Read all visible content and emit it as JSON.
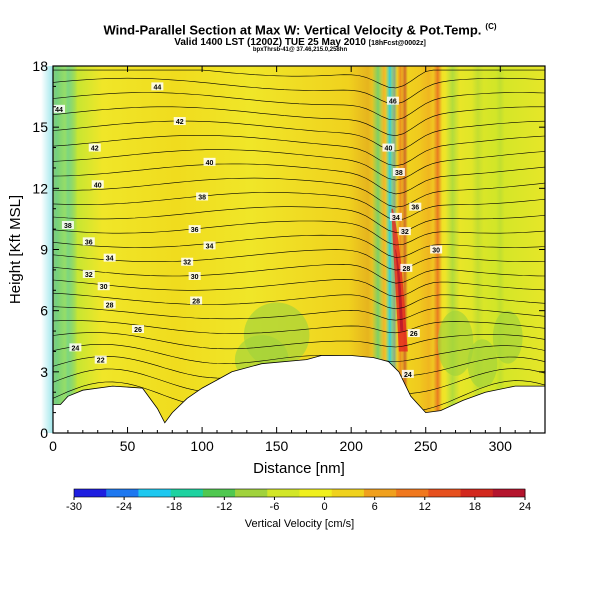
{
  "header": {
    "title": "Wind-Parallel Section at Max W: Vertical Velocity & Pot.Temp.",
    "title_mark": "(C)",
    "valid_line": "Valid 1400 LST",
    "valid_time": "(1200Z) TUE 25 May 2010",
    "run_tag": "[18hFcst@0002z]",
    "sub_line": "bpxThrsb-41@ 37.46,215.0,258hn"
  },
  "colorbar": {
    "label": "Vertical Velocity [cm/s]",
    "ticks": [
      "-30",
      "-24",
      "-18",
      "-12",
      "-6",
      "0",
      "6",
      "12",
      "18",
      "24"
    ],
    "colors": [
      "#1e1ee0",
      "#1e78f0",
      "#1ec8f0",
      "#1ed2a0",
      "#50c850",
      "#a0d23c",
      "#d2e628",
      "#f0f01e",
      "#f0d21e",
      "#f0a01e",
      "#f0781e",
      "#e6501e",
      "#d2281e",
      "#b4142d"
    ]
  },
  "chart_data": {
    "type": "heatmap",
    "title": "Wind-Parallel Section at Max W: Vertical Velocity & Pot.Temp.",
    "xlabel": "Distance [nm]",
    "ylabel": "Height [Kft MSL]",
    "xlim": [
      0,
      330
    ],
    "ylim": [
      0,
      18
    ],
    "xticks": [
      0,
      50,
      100,
      150,
      200,
      250,
      300
    ],
    "yticks": [
      0,
      3,
      6,
      9,
      12,
      15,
      18
    ],
    "colorbar_range": [
      -30,
      24
    ],
    "theta_contour_labels": [
      {
        "label": "44",
        "x": 4,
        "y": 15.9
      },
      {
        "label": "44",
        "x": 70,
        "y": 17.0
      },
      {
        "label": "42",
        "x": 85,
        "y": 15.3
      },
      {
        "label": "42",
        "x": 28,
        "y": 14.0
      },
      {
        "label": "40",
        "x": 30,
        "y": 12.2
      },
      {
        "label": "40",
        "x": 105,
        "y": 13.3
      },
      {
        "label": "38",
        "x": 10,
        "y": 10.2
      },
      {
        "label": "38",
        "x": 100,
        "y": 11.6
      },
      {
        "label": "36",
        "x": 24,
        "y": 9.4
      },
      {
        "label": "36",
        "x": 95,
        "y": 10.0
      },
      {
        "label": "34",
        "x": 38,
        "y": 8.6
      },
      {
        "label": "34",
        "x": 105,
        "y": 9.2
      },
      {
        "label": "32",
        "x": 24,
        "y": 7.8
      },
      {
        "label": "32",
        "x": 90,
        "y": 8.4
      },
      {
        "label": "30",
        "x": 34,
        "y": 7.2
      },
      {
        "label": "30",
        "x": 95,
        "y": 7.7
      },
      {
        "label": "28",
        "x": 38,
        "y": 6.3
      },
      {
        "label": "28",
        "x": 96,
        "y": 6.5
      },
      {
        "label": "26",
        "x": 57,
        "y": 5.1
      },
      {
        "label": "24",
        "x": 15,
        "y": 4.2
      },
      {
        "label": "22",
        "x": 32,
        "y": 3.6
      },
      {
        "label": "46",
        "x": 228,
        "y": 16.3
      },
      {
        "label": "40",
        "x": 225,
        "y": 14.0
      },
      {
        "label": "38",
        "x": 232,
        "y": 12.8
      },
      {
        "label": "34",
        "x": 230,
        "y": 10.6
      },
      {
        "label": "36",
        "x": 243,
        "y": 11.1
      },
      {
        "label": "32",
        "x": 236,
        "y": 9.9
      },
      {
        "label": "30",
        "x": 257,
        "y": 9.0
      },
      {
        "label": "28",
        "x": 237,
        "y": 8.1
      },
      {
        "label": "26",
        "x": 242,
        "y": 4.9
      },
      {
        "label": "24",
        "x": 238,
        "y": 2.9
      }
    ],
    "terrain_kft": [
      [
        0,
        1.4
      ],
      [
        5,
        1.4
      ],
      [
        10,
        1.8
      ],
      [
        20,
        2.1
      ],
      [
        40,
        2.3
      ],
      [
        60,
        2.2
      ],
      [
        70,
        1.2
      ],
      [
        75,
        0.5
      ],
      [
        80,
        1.0
      ],
      [
        90,
        1.7
      ],
      [
        100,
        2.2
      ],
      [
        110,
        2.6
      ],
      [
        120,
        3.0
      ],
      [
        140,
        3.4
      ],
      [
        170,
        3.6
      ],
      [
        180,
        3.8
      ],
      [
        200,
        3.8
      ],
      [
        215,
        3.7
      ],
      [
        225,
        3.5
      ],
      [
        232,
        3.0
      ],
      [
        240,
        1.8
      ],
      [
        250,
        1.0
      ],
      [
        260,
        1.1
      ],
      [
        275,
        1.6
      ],
      [
        290,
        2.0
      ],
      [
        310,
        2.3
      ],
      [
        330,
        2.3
      ]
    ]
  }
}
